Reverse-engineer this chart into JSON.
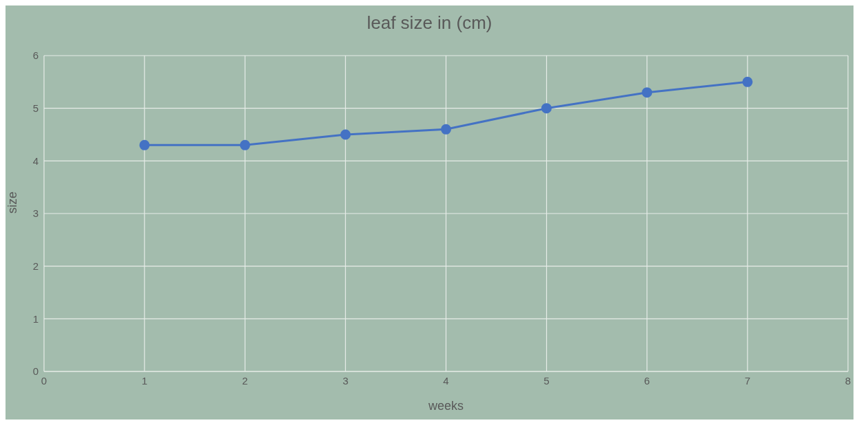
{
  "chart_data": {
    "type": "line",
    "title": "leaf size in (cm)",
    "xlabel": "weeks",
    "ylabel": "size",
    "x": [
      1,
      2,
      3,
      4,
      5,
      6,
      7
    ],
    "series": [
      {
        "color": "#4472c4",
        "values": [
          4.3,
          4.3,
          4.5,
          4.6,
          5.0,
          5.3,
          5.5
        ]
      }
    ],
    "xlim": [
      0,
      8
    ],
    "xticks": [
      0,
      1,
      2,
      3,
      4,
      5,
      6,
      7,
      8
    ],
    "ylim": [
      0,
      6
    ],
    "yticks": [
      0,
      1,
      2,
      3,
      4,
      5,
      6
    ],
    "grid": true,
    "legend": false,
    "marker": "circle",
    "line_style": "solid"
  }
}
